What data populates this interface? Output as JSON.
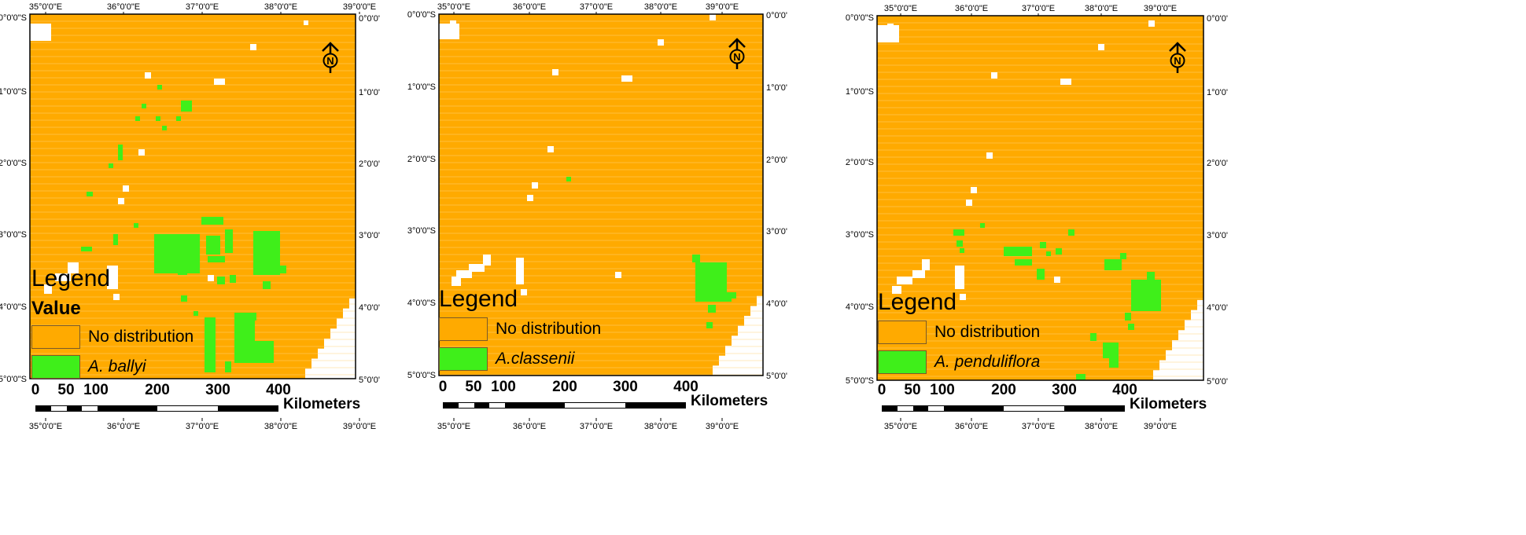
{
  "colors": {
    "no_distribution": "#ffaa00",
    "distribution": "#3fef1a",
    "gap": "#ffffff"
  },
  "panels": [
    {
      "name": "A. ballyi",
      "top_labels": [
        "35°0'0\"E",
        "36°0'0\"E",
        "37°0'0\"E",
        "38°0'0\"E",
        "39°0'0\"E"
      ],
      "bottom_labels": [
        "35°0'0\"E",
        "36°0'0\"E",
        "37°0'0\"E",
        "38°0'0\"E",
        "39°0'0\"E"
      ],
      "left_labels": [
        "0°0'0\"S",
        "1°0'0\"S",
        "2°0'0\"S",
        "3°0'0\"S",
        "4°0'0\"S",
        "5°0'0\"S"
      ],
      "right_labels": [
        "0°0'0'",
        "1°0'0'",
        "2°0'0'",
        "3°0'0'",
        "4°0'0'",
        "5°0'0'"
      ],
      "legend": {
        "title": "Legend",
        "subtitle": "Value",
        "items": [
          {
            "label": "No distribution",
            "italic": false
          },
          {
            "label": "A. ballyi",
            "italic": true
          }
        ]
      },
      "scale": {
        "ticks": [
          "0",
          "50",
          "100",
          "200",
          "300",
          "400"
        ],
        "unit": "Kilometers"
      },
      "north": "N"
    },
    {
      "name": "A.classenii",
      "top_labels": [
        "35°0'0\"E",
        "36°0'0\"E",
        "37°0'0\"E",
        "38°0'0\"E",
        "39°0'0\"E"
      ],
      "bottom_labels": [
        "35°0'0\"E",
        "36°0'0\"E",
        "37°0'0\"E",
        "38°0'0\"E",
        "39°0'0\"E"
      ],
      "left_labels": [
        "0°0'0\"S",
        "1°0'0\"S",
        "2°0'0\"S",
        "3°0'0\"S",
        "4°0'0\"S",
        "5°0'0\"S"
      ],
      "right_labels": [
        "0°0'0'",
        "1°0'0'",
        "2°0'0'",
        "3°0'0'",
        "4°0'0'",
        "5°0'0'"
      ],
      "legend": {
        "title": "Legend",
        "subtitle": "",
        "items": [
          {
            "label": "No distribution",
            "italic": false
          },
          {
            "label": "A.classenii",
            "italic": true
          }
        ]
      },
      "scale": {
        "ticks": [
          "0",
          "50",
          "100",
          "200",
          "300",
          "400"
        ],
        "unit": "Kilometers"
      },
      "north": "N"
    },
    {
      "name": "A. penduliflora",
      "top_labels": [
        "35°0'0\"E",
        "36°0'0\"E",
        "37°0'0\"E",
        "38°0'0\"E",
        "39°0'0\"E"
      ],
      "bottom_labels": [
        "35°0'0\"E",
        "36°0'0\"E",
        "37°0'0\"E",
        "38°0'0\"E",
        "39°0'0\"E"
      ],
      "left_labels": [
        "0°0'0\"S",
        "1°0'0\"S",
        "2°0'0\"S",
        "3°0'0\"S",
        "4°0'0\"S",
        "5°0'0\"S"
      ],
      "right_labels": [
        "0°0'0'",
        "1°0'0'",
        "2°0'0'",
        "3°0'0'",
        "4°0'0'",
        "5°0'0'"
      ],
      "legend": {
        "title": "Legend",
        "subtitle": "",
        "items": [
          {
            "label": "No distribution",
            "italic": false
          },
          {
            "label": "A. penduliflora",
            "italic": true
          }
        ]
      },
      "scale": {
        "ticks": [
          "0",
          "50",
          "100",
          "200",
          "300",
          "400"
        ],
        "unit": "Kilometers"
      },
      "north": "N"
    }
  ]
}
